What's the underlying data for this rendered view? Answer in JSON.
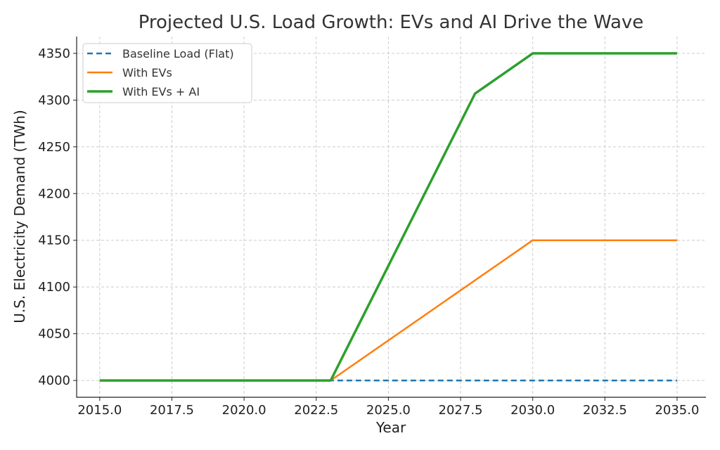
{
  "chart_data": {
    "type": "line",
    "title": "Projected U.S. Load Growth: EVs and AI Drive the Wave",
    "xlabel": "Year",
    "ylabel": "U.S. Electricity Demand (TWh)",
    "xlim": [
      2014.2,
      2036.0
    ],
    "ylim": [
      3982,
      4368
    ],
    "xticks": [
      2015.0,
      2017.5,
      2020.0,
      2022.5,
      2025.0,
      2027.5,
      2030.0,
      2032.5,
      2035.0
    ],
    "xtick_labels": [
      "2015.0",
      "2017.5",
      "2020.0",
      "2022.5",
      "2025.0",
      "2027.5",
      "2030.0",
      "2032.5",
      "2035.0"
    ],
    "yticks": [
      4000,
      4050,
      4100,
      4150,
      4200,
      4250,
      4300,
      4350
    ],
    "ytick_labels": [
      "4000",
      "4050",
      "4100",
      "4150",
      "4200",
      "4250",
      "4300",
      "4350"
    ],
    "grid": true,
    "legend_position": "top-left",
    "series": [
      {
        "name": "Baseline Load (Flat)",
        "color": "#1f77b4",
        "dash": true,
        "x": [
          2015,
          2023,
          2035
        ],
        "y": [
          4000,
          4000,
          4000
        ]
      },
      {
        "name": "With EVs",
        "color": "#ff7f0e",
        "dash": false,
        "x": [
          2015,
          2023,
          2030,
          2035
        ],
        "y": [
          4000,
          4000,
          4150,
          4150
        ]
      },
      {
        "name": "With EVs + AI",
        "color": "#2ca02c",
        "dash": false,
        "x": [
          2015,
          2023,
          2028,
          2030,
          2035
        ],
        "y": [
          4000,
          4000,
          4307,
          4350,
          4350
        ]
      }
    ]
  }
}
